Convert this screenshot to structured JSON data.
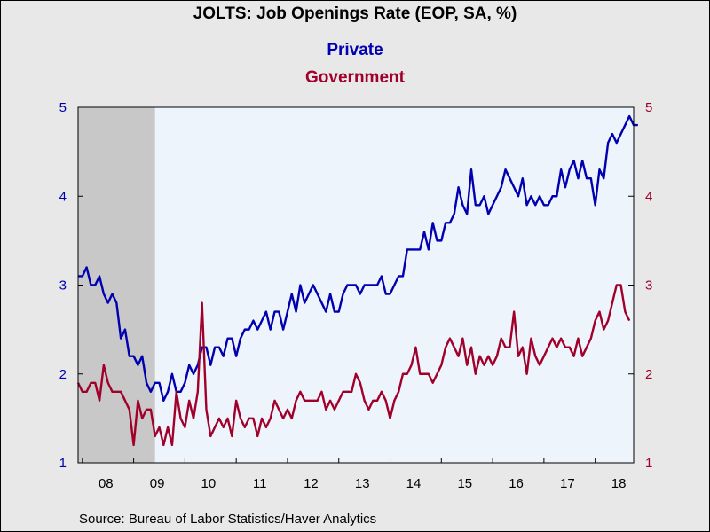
{
  "chart_data": {
    "type": "line",
    "title": "JOLTS: Job Openings Rate (EOP, SA, %)",
    "source": "Source:  Bureau of Labor Statistics/Haver Analytics",
    "x_tick_labels": [
      "08",
      "09",
      "10",
      "11",
      "12",
      "13",
      "14",
      "15",
      "16",
      "17",
      "18"
    ],
    "y_left_ticks": [
      "1",
      "2",
      "3",
      "4",
      "5"
    ],
    "y_right_ticks": [
      "1",
      "2",
      "3",
      "4",
      "5"
    ],
    "ylim": [
      1,
      5
    ],
    "xlim": [
      "2007-12",
      "2018-10"
    ],
    "recession": {
      "start": "2007-12",
      "end": "2009-06"
    },
    "grid": false,
    "colors": {
      "private": "#0000b0",
      "government": "#a0002a",
      "plot_bg": "#eef4fc",
      "recession": "#c8c8c8",
      "frame_bg": "#e8e8e8"
    },
    "series": [
      {
        "name": "Private",
        "start": "2007-12",
        "values": [
          3.1,
          3.1,
          3.2,
          3.0,
          3.0,
          3.1,
          2.9,
          2.8,
          2.9,
          2.8,
          2.4,
          2.5,
          2.2,
          2.2,
          2.1,
          2.2,
          1.9,
          1.8,
          1.9,
          1.9,
          1.7,
          1.8,
          2.0,
          1.8,
          1.8,
          1.9,
          2.1,
          2.0,
          2.1,
          2.3,
          2.3,
          2.1,
          2.3,
          2.3,
          2.2,
          2.4,
          2.4,
          2.2,
          2.4,
          2.5,
          2.5,
          2.6,
          2.5,
          2.6,
          2.7,
          2.5,
          2.7,
          2.7,
          2.5,
          2.7,
          2.9,
          2.7,
          3.0,
          2.8,
          2.9,
          3.0,
          2.9,
          2.8,
          2.7,
          2.9,
          2.7,
          2.7,
          2.9,
          3.0,
          3.0,
          3.0,
          2.9,
          3.0,
          3.0,
          3.0,
          3.0,
          3.1,
          2.9,
          2.9,
          3.0,
          3.1,
          3.1,
          3.4,
          3.4,
          3.4,
          3.4,
          3.6,
          3.4,
          3.7,
          3.5,
          3.5,
          3.7,
          3.7,
          3.8,
          4.1,
          3.9,
          3.8,
          4.3,
          3.9,
          3.9,
          4.0,
          3.8,
          3.9,
          4.0,
          4.1,
          4.3,
          4.2,
          4.1,
          4.0,
          4.2,
          3.9,
          4.0,
          3.9,
          4.0,
          3.9,
          3.9,
          4.0,
          4.0,
          4.3,
          4.1,
          4.3,
          4.4,
          4.2,
          4.4,
          4.2,
          4.2,
          3.9,
          4.3,
          4.2,
          4.6,
          4.7,
          4.6,
          4.7,
          4.8,
          4.9,
          4.8,
          4.8
        ]
      },
      {
        "name": "Government",
        "start": "2007-12",
        "values": [
          1.9,
          1.8,
          1.8,
          1.9,
          1.9,
          1.7,
          2.1,
          1.9,
          1.8,
          1.8,
          1.8,
          1.7,
          1.6,
          1.2,
          1.7,
          1.5,
          1.6,
          1.6,
          1.3,
          1.4,
          1.2,
          1.4,
          1.2,
          1.8,
          1.5,
          1.4,
          1.7,
          1.5,
          1.8,
          2.8,
          1.6,
          1.3,
          1.4,
          1.5,
          1.4,
          1.5,
          1.3,
          1.7,
          1.5,
          1.4,
          1.5,
          1.5,
          1.3,
          1.5,
          1.4,
          1.5,
          1.7,
          1.6,
          1.5,
          1.6,
          1.5,
          1.7,
          1.8,
          1.7,
          1.7,
          1.7,
          1.7,
          1.8,
          1.6,
          1.7,
          1.6,
          1.7,
          1.8,
          1.8,
          1.8,
          2.0,
          1.9,
          1.7,
          1.6,
          1.7,
          1.7,
          1.8,
          1.7,
          1.5,
          1.7,
          1.8,
          2.0,
          2.0,
          2.1,
          2.3,
          2.0,
          2.0,
          2.0,
          1.9,
          2.0,
          2.1,
          2.3,
          2.4,
          2.3,
          2.2,
          2.4,
          2.1,
          2.3,
          2.0,
          2.2,
          2.1,
          2.2,
          2.1,
          2.2,
          2.4,
          2.3,
          2.3,
          2.7,
          2.2,
          2.3,
          2.0,
          2.4,
          2.2,
          2.1,
          2.2,
          2.3,
          2.4,
          2.3,
          2.4,
          2.3,
          2.3,
          2.2,
          2.4,
          2.2,
          2.3,
          2.4,
          2.6,
          2.7,
          2.5,
          2.6,
          2.8,
          3.0,
          3.0,
          2.7,
          2.6
        ]
      }
    ]
  }
}
